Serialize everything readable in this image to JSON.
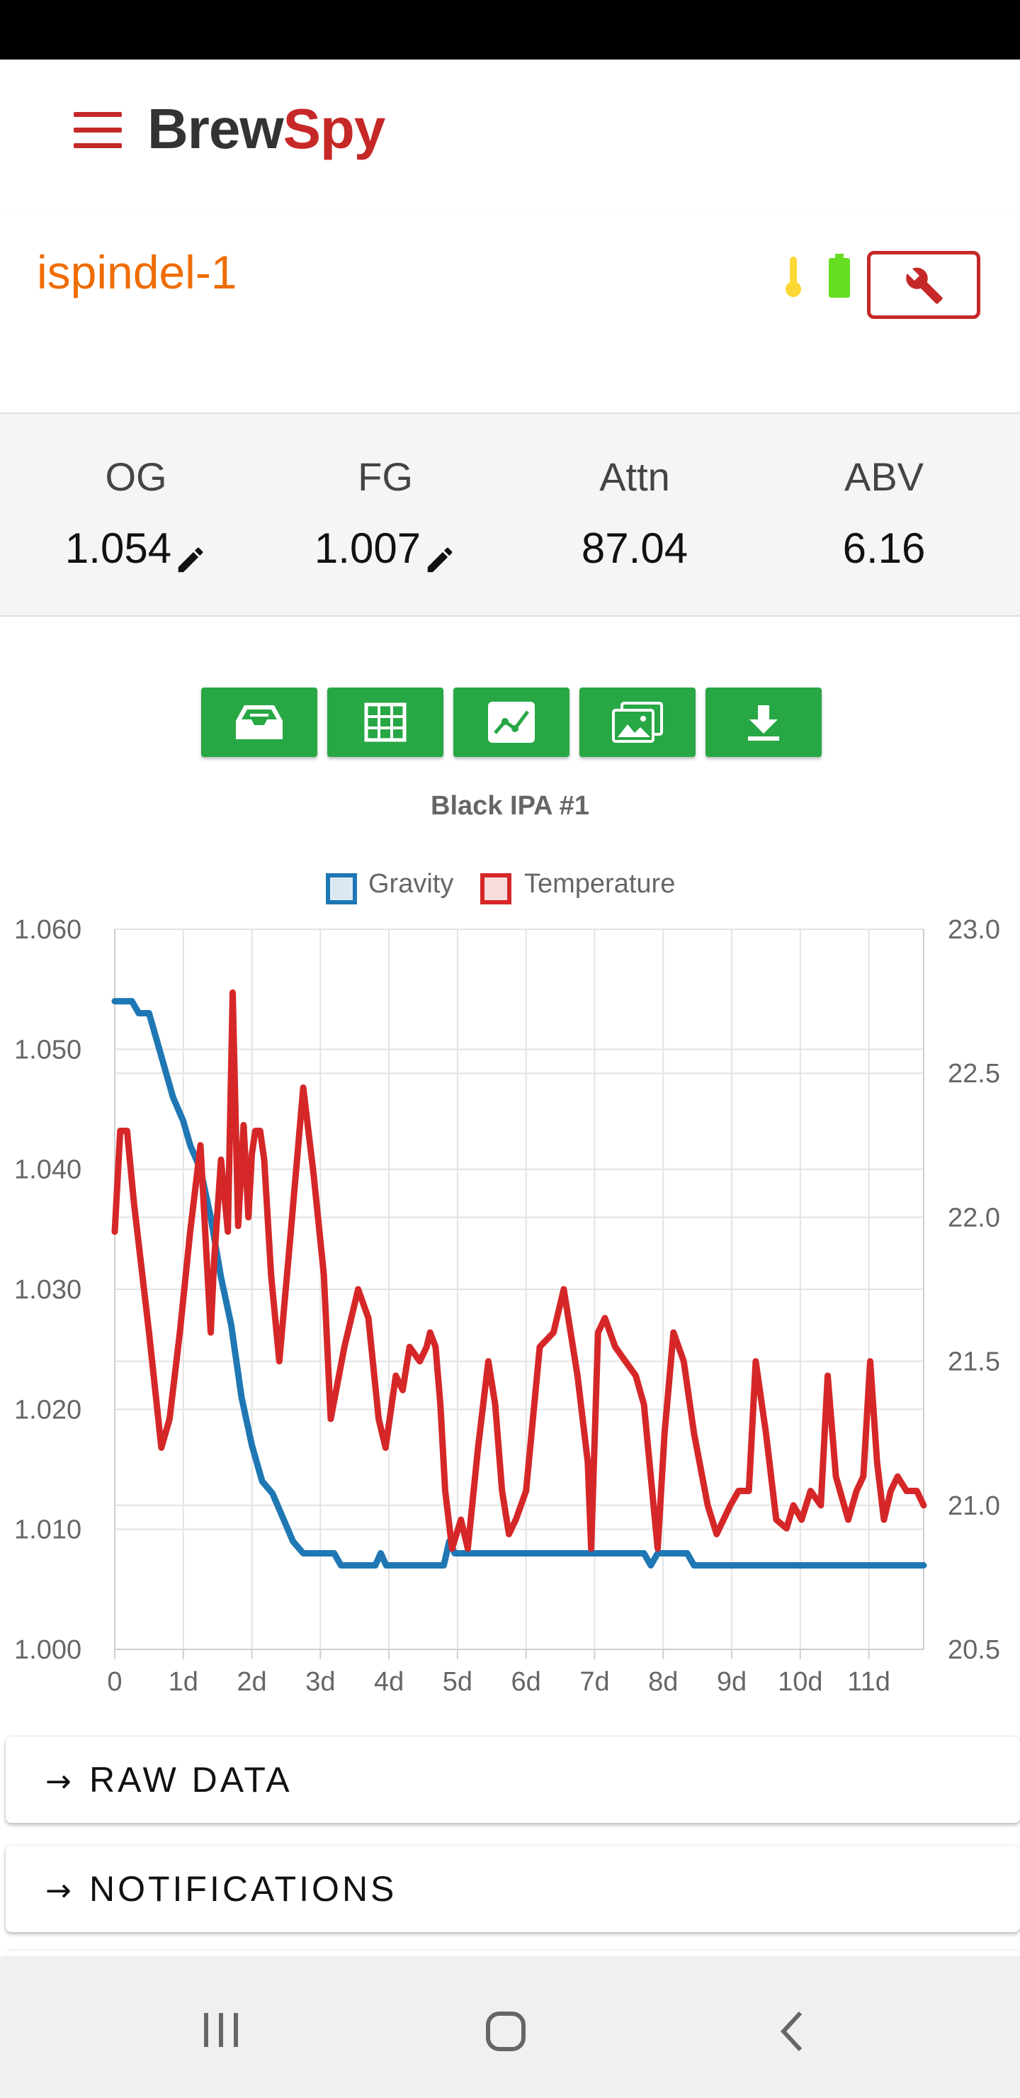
{
  "app": {
    "brand_main": "Brew",
    "brand_accent": "Spy",
    "brand_color": "#c62828"
  },
  "device": {
    "name": "ispindel-1",
    "name_color": "#ef6c00",
    "temperature_icon": "thermometer-icon",
    "battery_icon": "battery-icon",
    "settings_icon": "wrench-icon"
  },
  "stats": [
    {
      "label": "OG",
      "value": "1.054",
      "editable": true
    },
    {
      "label": "FG",
      "value": "1.007",
      "editable": true
    },
    {
      "label": "Attn",
      "value": "87.04",
      "editable": false
    },
    {
      "label": "ABV",
      "value": "6.16",
      "editable": false
    }
  ],
  "toolbar": {
    "buttons": [
      "inbox-tray-icon",
      "table-grid-icon",
      "chart-icon",
      "images-icon",
      "download-icon"
    ],
    "color": "#28a745"
  },
  "chart_data": {
    "type": "line",
    "title": "Black IPA #1",
    "legend_position": "top",
    "grid": true,
    "x_ticks": [
      "0",
      "1d",
      "2d",
      "3d",
      "4d",
      "5d",
      "6d",
      "7d",
      "8d",
      "9d",
      "10d",
      "11d"
    ],
    "xlim_days": [
      0,
      11.8
    ],
    "y_left": {
      "ticks": [
        "1.000",
        "1.010",
        "1.020",
        "1.030",
        "1.040",
        "1.050",
        "1.060"
      ],
      "lim": [
        1.0,
        1.06
      ]
    },
    "y_right": {
      "ticks": [
        "20.5",
        "21.0",
        "21.5",
        "22.0",
        "22.5",
        "23.0"
      ],
      "lim": [
        20.5,
        23.0
      ]
    },
    "series": [
      {
        "name": "Gravity",
        "axis": "left",
        "color": "#1f77b4",
        "x": [
          0,
          0.25,
          0.35,
          0.5,
          0.6,
          0.75,
          0.85,
          1.0,
          1.1,
          1.25,
          1.4,
          1.55,
          1.7,
          1.85,
          2.0,
          2.15,
          2.3,
          2.45,
          2.6,
          2.75,
          2.9,
          3.0,
          3.2,
          3.3,
          3.45,
          3.6,
          3.8,
          3.88,
          3.96,
          4.2,
          4.5,
          4.8,
          4.88,
          4.96,
          5.05,
          5.5,
          6.0,
          6.5,
          7.0,
          7.5,
          7.72,
          7.82,
          7.92,
          8.0,
          8.2,
          8.35,
          8.45,
          8.55,
          9.0,
          10.0,
          11.0,
          11.8
        ],
        "y": [
          1.054,
          1.054,
          1.053,
          1.053,
          1.051,
          1.048,
          1.046,
          1.044,
          1.042,
          1.04,
          1.036,
          1.031,
          1.027,
          1.021,
          1.017,
          1.014,
          1.013,
          1.011,
          1.009,
          1.008,
          1.008,
          1.008,
          1.008,
          1.007,
          1.007,
          1.007,
          1.007,
          1.008,
          1.007,
          1.007,
          1.007,
          1.007,
          1.009,
          1.008,
          1.008,
          1.008,
          1.008,
          1.008,
          1.008,
          1.008,
          1.008,
          1.007,
          1.008,
          1.008,
          1.008,
          1.008,
          1.007,
          1.007,
          1.007,
          1.007,
          1.007,
          1.007
        ]
      },
      {
        "name": "Temperature",
        "axis": "right",
        "color": "#d62728",
        "x": [
          0,
          0.08,
          0.18,
          0.28,
          0.5,
          0.68,
          0.8,
          0.95,
          1.1,
          1.25,
          1.4,
          1.45,
          1.55,
          1.65,
          1.72,
          1.8,
          1.88,
          1.95,
          2.0,
          2.05,
          2.12,
          2.18,
          2.28,
          2.4,
          2.55,
          2.75,
          2.9,
          3.05,
          3.15,
          3.35,
          3.55,
          3.7,
          3.85,
          3.95,
          4.1,
          4.2,
          4.3,
          4.45,
          4.55,
          4.6,
          4.68,
          4.75,
          4.82,
          4.92,
          5.05,
          5.15,
          5.3,
          5.45,
          5.55,
          5.65,
          5.75,
          5.85,
          6.0,
          6.2,
          6.4,
          6.55,
          6.65,
          6.75,
          6.9,
          6.95,
          7.05,
          7.15,
          7.3,
          7.45,
          7.6,
          7.72,
          7.82,
          7.92,
          8.02,
          8.15,
          8.3,
          8.45,
          8.65,
          8.78,
          8.88,
          8.98,
          9.1,
          9.25,
          9.35,
          9.5,
          9.65,
          9.8,
          9.9,
          10.02,
          10.15,
          10.3,
          10.4,
          10.52,
          10.7,
          10.82,
          10.92,
          11.02,
          11.12,
          11.22,
          11.32,
          11.42,
          11.55,
          11.7,
          11.8
        ],
        "y": [
          21.95,
          22.3,
          22.3,
          22.05,
          21.6,
          21.2,
          21.3,
          21.6,
          21.95,
          22.25,
          21.6,
          21.85,
          22.2,
          21.95,
          22.78,
          21.97,
          22.32,
          22.0,
          22.22,
          22.3,
          22.3,
          22.2,
          21.8,
          21.5,
          21.9,
          22.45,
          22.15,
          21.8,
          21.3,
          21.55,
          21.75,
          21.65,
          21.3,
          21.2,
          21.45,
          21.4,
          21.55,
          21.5,
          21.55,
          21.6,
          21.55,
          21.35,
          21.05,
          20.85,
          20.95,
          20.85,
          21.2,
          21.5,
          21.35,
          21.05,
          20.9,
          20.95,
          21.05,
          21.55,
          21.6,
          21.75,
          21.6,
          21.45,
          21.15,
          20.85,
          21.6,
          21.65,
          21.55,
          21.5,
          21.45,
          21.35,
          21.1,
          20.85,
          21.25,
          21.6,
          21.5,
          21.25,
          21.0,
          20.9,
          20.95,
          21.0,
          21.05,
          21.05,
          21.5,
          21.25,
          20.95,
          20.92,
          21.0,
          20.95,
          21.05,
          21.0,
          21.45,
          21.1,
          20.95,
          21.05,
          21.1,
          21.5,
          21.15,
          20.95,
          21.05,
          21.1,
          21.05,
          21.05,
          21.0
        ]
      }
    ]
  },
  "cards": [
    {
      "label": "RAW DATA"
    },
    {
      "label": "NOTIFICATIONS"
    }
  ],
  "nav": {
    "recents": "recents-icon",
    "home": "home-icon",
    "back": "back-icon"
  }
}
